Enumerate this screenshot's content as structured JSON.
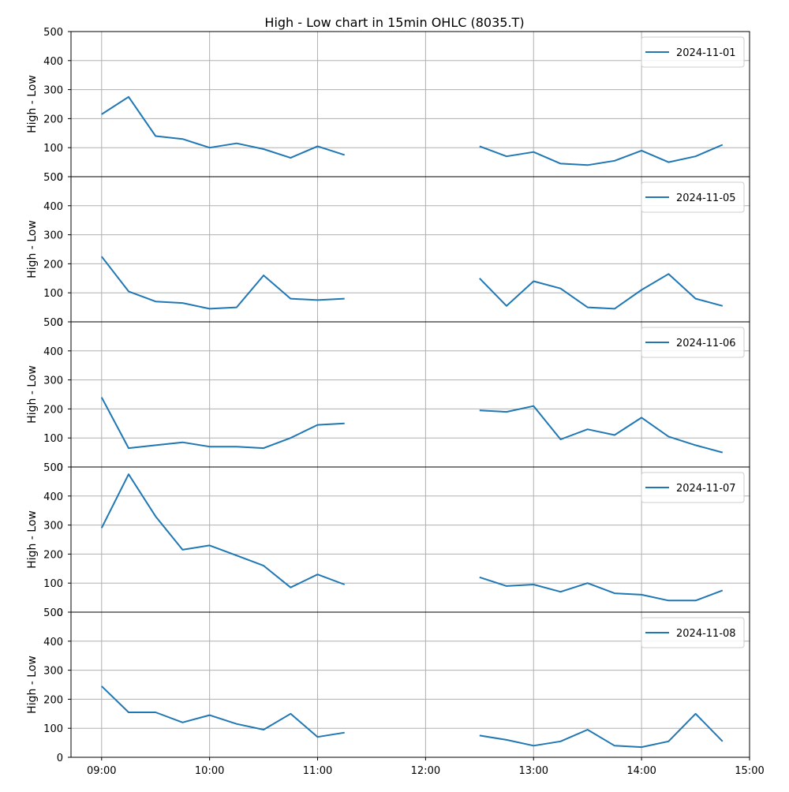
{
  "chart_data": {
    "type": "line",
    "title": "High - Low chart in 15min OHLC (8035.T)",
    "ylabel": "High - Low",
    "ylim": [
      0,
      500
    ],
    "yticks": [
      0,
      100,
      200,
      300,
      400,
      500
    ],
    "xlim": [
      "08:43",
      "15:00"
    ],
    "xticks": [
      "09:00",
      "10:00",
      "11:00",
      "12:00",
      "13:00",
      "14:00",
      "15:00"
    ],
    "grid": true,
    "legend_position": "upper-right",
    "color": "#1f77b4",
    "session_times": {
      "morning": [
        "09:00",
        "09:15",
        "09:30",
        "09:45",
        "10:00",
        "10:15",
        "10:30",
        "10:45",
        "11:00",
        "11:15"
      ],
      "afternoon": [
        "12:30",
        "12:45",
        "13:00",
        "13:15",
        "13:30",
        "13:45",
        "14:00",
        "14:15",
        "14:30",
        "14:45"
      ]
    },
    "panels": [
      {
        "name": "2024-11-01",
        "morning": [
          215,
          275,
          140,
          130,
          100,
          115,
          95,
          65,
          105,
          75
        ],
        "afternoon": [
          105,
          70,
          85,
          45,
          40,
          55,
          90,
          50,
          70,
          110
        ]
      },
      {
        "name": "2024-11-05",
        "morning": [
          225,
          105,
          70,
          65,
          45,
          50,
          160,
          80,
          75,
          80
        ],
        "afternoon": [
          150,
          55,
          140,
          115,
          50,
          45,
          110,
          165,
          80,
          55
        ]
      },
      {
        "name": "2024-11-06",
        "morning": [
          240,
          65,
          75,
          85,
          70,
          70,
          65,
          100,
          145,
          150
        ],
        "afternoon": [
          195,
          190,
          210,
          95,
          130,
          110,
          170,
          105,
          75,
          50
        ]
      },
      {
        "name": "2024-11-07",
        "morning": [
          290,
          475,
          330,
          215,
          230,
          195,
          160,
          85,
          130,
          95
        ],
        "afternoon": [
          120,
          90,
          95,
          70,
          100,
          65,
          60,
          40,
          40,
          75
        ]
      },
      {
        "name": "2024-11-08",
        "morning": [
          245,
          155,
          155,
          120,
          145,
          115,
          95,
          150,
          70,
          85
        ],
        "afternoon": [
          75,
          60,
          40,
          55,
          95,
          40,
          35,
          55,
          150,
          55
        ]
      }
    ]
  }
}
